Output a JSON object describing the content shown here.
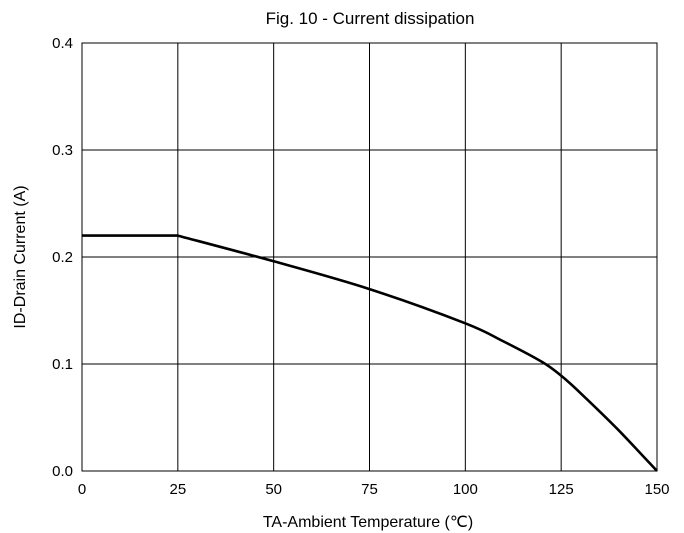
{
  "chart_data": {
    "type": "line",
    "title": "Fig. 10 - Current dissipation",
    "xlabel": "TA-Ambient Temperature (℃)",
    "ylabel": "ID-Drain Current (A)",
    "xlim": [
      0,
      150
    ],
    "ylim": [
      0,
      0.4
    ],
    "grid": true,
    "x_ticks": [
      "0",
      "25",
      "50",
      "75",
      "100",
      "125",
      "150"
    ],
    "y_ticks": [
      "0.0",
      "0.1",
      "0.2",
      "0.3",
      "0.4"
    ],
    "series": [
      {
        "x": [
          0,
          25,
          50,
          75,
          100,
          110,
          120,
          125,
          130,
          140,
          150
        ],
        "y": [
          0.22,
          0.22,
          0.196,
          0.17,
          0.138,
          0.121,
          0.102,
          0.089,
          0.073,
          0.038,
          0.0
        ]
      }
    ],
    "colors": {
      "line": "#000000",
      "grid": "#000000"
    }
  }
}
